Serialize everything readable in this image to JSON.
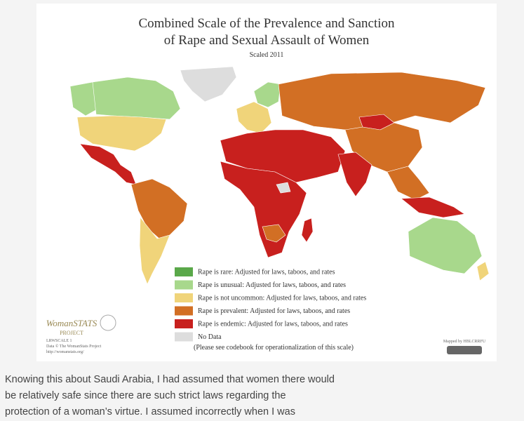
{
  "map": {
    "title": [
      "Combined Scale of the Prevalence and Sanction",
      "of Rape and Sexual Assault of Women"
    ],
    "subtitle": "Scaled 2011",
    "legend": [
      {
        "color": "#5aa84a",
        "label": "Rape is rare: Adjusted for laws, taboos, and rates"
      },
      {
        "color": "#a8d88c",
        "label": "Rape is unusual: Adjusted for laws, taboos, and rates"
      },
      {
        "color": "#f0d47a",
        "label": "Rape is not uncommon: Adjusted for laws, taboos, and rates"
      },
      {
        "color": "#d26f24",
        "label": "Rape is prevalent: Adjusted for laws, taboos, and rates"
      },
      {
        "color": "#c8201e",
        "label": "Rape is endemic: Adjusted for laws, taboos, and rates"
      },
      {
        "color": "#dddddd",
        "label": "No Data"
      }
    ],
    "note": "(Please see codebook for operationalization of this scale)",
    "logo": {
      "name": "WomanSTATS",
      "sub": "PROJECT"
    },
    "credits": [
      "LRWSCALE 1",
      "Data © The WomanStats Project",
      "http://womanstats.org/"
    ],
    "mapped_by": "Mapped by HBLCRRFU"
  },
  "article": {
    "lines": [
      "Knowing this about Saudi Arabia, I had assumed that women there would",
      "be relatively safe since there are such strict laws regarding the",
      "protection of a woman’s virtue. I assumed incorrectly when I was"
    ]
  }
}
